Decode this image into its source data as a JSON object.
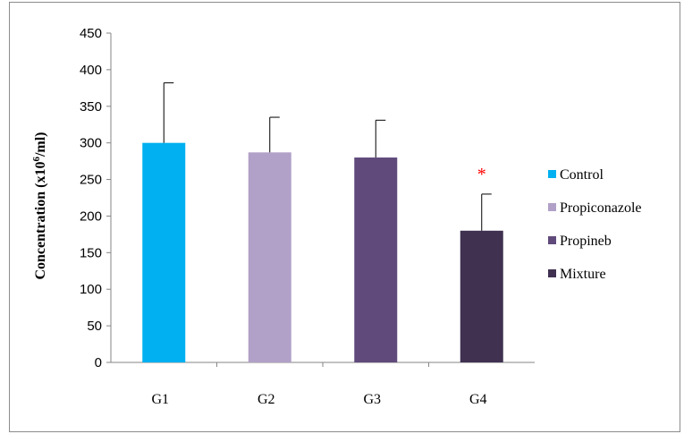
{
  "chart_data": {
    "type": "bar",
    "categories": [
      "G1",
      "G2",
      "G3",
      "G4"
    ],
    "series": [
      {
        "name": "Control",
        "category": "G1",
        "value": 300,
        "error": 82,
        "color": "#00b0f0"
      },
      {
        "name": "Propiconazole",
        "category": "G2",
        "value": 287,
        "error": 48,
        "color": "#b1a0c7"
      },
      {
        "name": "Propineb",
        "category": "G3",
        "value": 280,
        "error": 51,
        "color": "#604a7b"
      },
      {
        "name": "Mixture",
        "category": "G4",
        "value": 180,
        "error": 50,
        "color": "#403151"
      }
    ],
    "ylabel_main": "Concentration (x10",
    "ylabel_sup": "6",
    "ylabel_end": "/ml)",
    "xlabel": "",
    "ylim": [
      0,
      450
    ],
    "yticks": [
      0,
      50,
      100,
      150,
      200,
      250,
      300,
      350,
      400,
      450
    ],
    "annotations": [
      {
        "category": "G4",
        "text": "*",
        "color": "#ff0000"
      }
    ],
    "legend_position": "right",
    "grid": false
  }
}
